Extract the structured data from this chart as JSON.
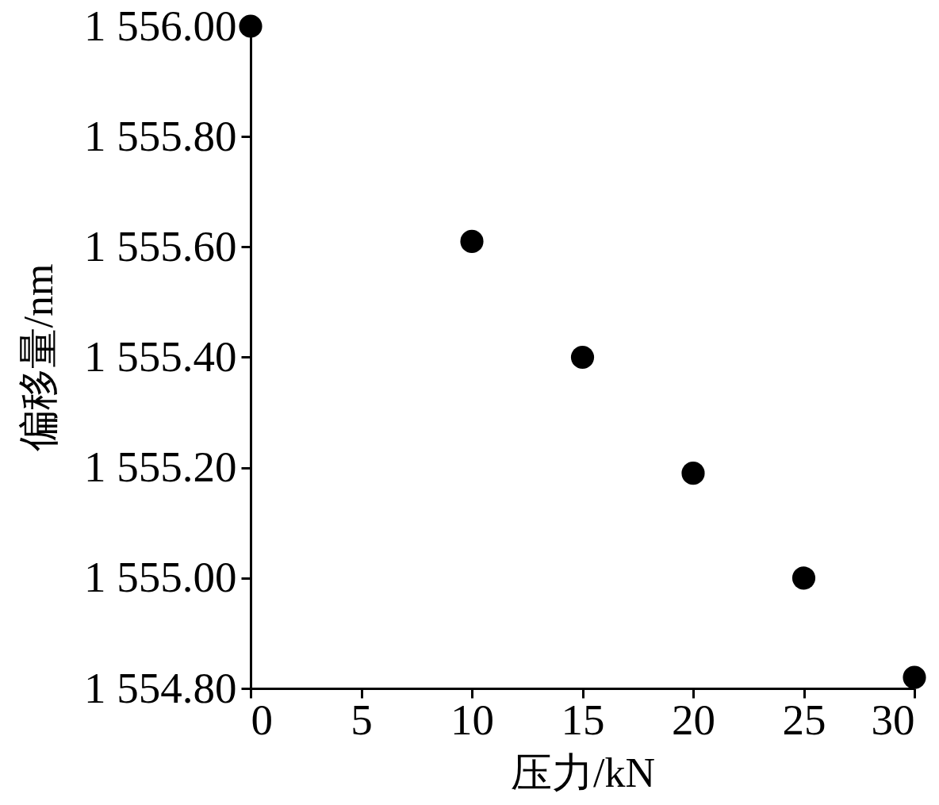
{
  "chart_data": {
    "type": "scatter",
    "xlabel": "压力/kN",
    "ylabel": "偏移量/nm",
    "x": [
      0,
      10,
      15,
      20,
      25,
      30
    ],
    "series": [
      {
        "color": "#000000",
        "values": [
          1556.0,
          1555.61,
          1555.4,
          1555.19,
          1555.0,
          1554.82
        ]
      }
    ],
    "xlim": [
      0,
      30
    ],
    "xticks": [
      0,
      5,
      10,
      15,
      20,
      25,
      30
    ],
    "ylim": [
      1554.8,
      1556.0
    ],
    "yticks": [
      {
        "value": 1554.8,
        "label": "1 554.80"
      },
      {
        "value": 1555.0,
        "label": "1 555.00"
      },
      {
        "value": 1555.2,
        "label": "1 555.20"
      },
      {
        "value": 1555.4,
        "label": "1 555.40"
      },
      {
        "value": 1555.6,
        "label": "1 555.60"
      },
      {
        "value": 1555.8,
        "label": "1 555.80"
      },
      {
        "value": 1556.0,
        "label": "1 556.00"
      }
    ],
    "marker": "circle",
    "grid": false
  }
}
